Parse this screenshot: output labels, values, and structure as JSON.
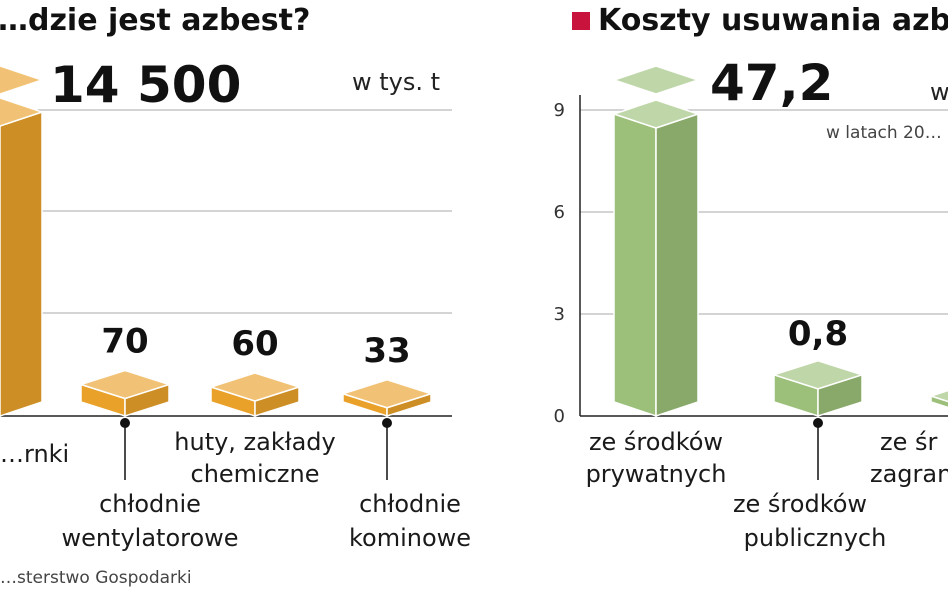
{
  "chart_data": [
    {
      "type": "bar",
      "title": "…dzie jest azbest?",
      "unit": "w tys. t",
      "categories": [
        "…rnki",
        "chłodnie wentylatorowe",
        "huty, zakłady chemiczne",
        "chłodnie kominowe"
      ],
      "category_lines": [
        [
          "…rnki"
        ],
        [
          "chłodnie",
          "wentylatorowe"
        ],
        [
          "huty, zakłady",
          "chemiczne"
        ],
        [
          "chłodnie",
          "kominowe"
        ]
      ],
      "values": [
        14500,
        70,
        60,
        33
      ],
      "value_labels": [
        "14 500",
        "70",
        "60",
        "33"
      ],
      "axis_break": true,
      "grid": true,
      "color": "#E9A12A",
      "source": "…sterstwo Gospodarki"
    },
    {
      "type": "bar",
      "title": "Koszty usuwania azb…",
      "unit": "w…",
      "subtitle": "w latach 20…",
      "categories": [
        "ze środków prywatnych",
        "ze środków publicznych",
        "ze śr… zagran…"
      ],
      "category_lines": [
        [
          "ze środków",
          "prywatnych"
        ],
        [
          "ze środków",
          "publicznych"
        ],
        [
          "ze śr",
          "zagran"
        ]
      ],
      "values": [
        47.2,
        0.8,
        null
      ],
      "value_labels": [
        "47,2",
        "0,8",
        ""
      ],
      "y_ticks": [
        0,
        3,
        6,
        9
      ],
      "ylim": [
        0,
        9
      ],
      "axis_break": true,
      "grid": true,
      "legend_marker_color": "#C8143C",
      "color": "#9CC07A"
    }
  ]
}
